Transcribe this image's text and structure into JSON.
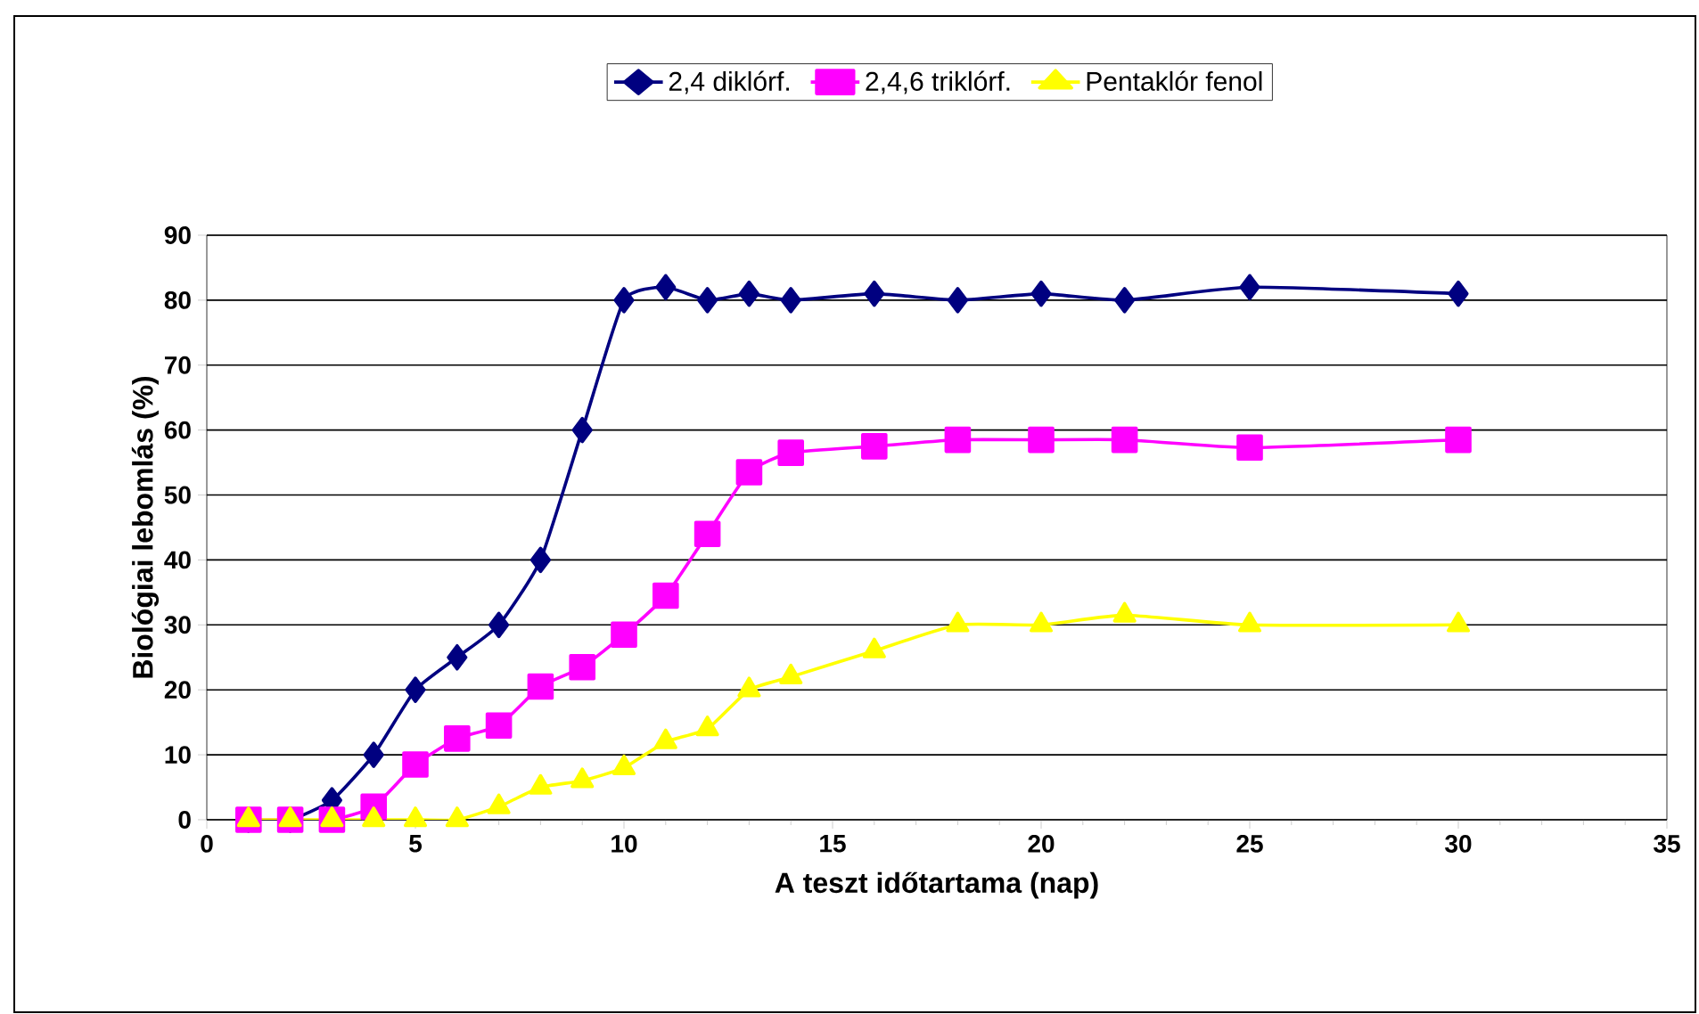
{
  "chart_data": {
    "type": "line",
    "xlabel": "A teszt időtartama (nap)",
    "ylabel": "Biológiai lebomlás (%)",
    "x": [
      1,
      2,
      3,
      4,
      5,
      6,
      7,
      8,
      9,
      10,
      11,
      12,
      13,
      14,
      16,
      18,
      20,
      22,
      25,
      30
    ],
    "series": [
      {
        "name": "2,4 diklórf.",
        "color": "#000080",
        "marker": "diamond",
        "values": [
          0,
          0,
          3,
          10,
          20,
          25,
          30,
          40,
          60,
          80,
          82,
          80,
          81,
          80,
          81,
          80,
          81,
          80,
          82,
          81
        ]
      },
      {
        "name": "2,4,6 triklórf.",
        "color": "#ff00ff",
        "marker": "square",
        "values": [
          0,
          0,
          0,
          2,
          8.5,
          12.5,
          14.5,
          20.5,
          23.5,
          28.5,
          34.5,
          44,
          53.5,
          56.5,
          57.5,
          58.5,
          58.5,
          58.5,
          57.3,
          58.5
        ]
      },
      {
        "name": "Pentaklór fenol",
        "color": "#ffff00",
        "marker": "triangle",
        "values": [
          0,
          0,
          0,
          0,
          0,
          0,
          2,
          5,
          6,
          8,
          12,
          14,
          20,
          22,
          26,
          30,
          30,
          31.5,
          30,
          30
        ]
      }
    ],
    "xlim": [
      0,
      35
    ],
    "xticks": [
      0,
      5,
      10,
      15,
      20,
      25,
      30,
      35
    ],
    "ylim": [
      0,
      90
    ],
    "yticks": [
      0,
      10,
      20,
      30,
      40,
      50,
      60,
      70,
      80,
      90
    ],
    "grid": "y",
    "legend": "top",
    "line_style": "solid"
  }
}
